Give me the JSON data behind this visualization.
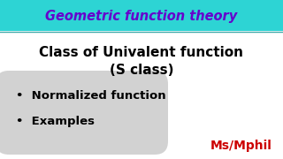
{
  "title_text": "Geometric function theory",
  "title_bg_color": "#2DD4D4",
  "title_text_color": "#6600CC",
  "title_fontsize": 10.5,
  "heading_line1": "Class of Univalent function",
  "heading_line2": "(S class)",
  "heading_fontsize": 11,
  "heading_color": "#000000",
  "bullet_items": [
    "Normalized function",
    "Examples"
  ],
  "bullet_fontsize": 9.5,
  "bullet_color": "#000000",
  "bullet_box_color": "#BBBBBB",
  "watermark_text": "Ms/Mphil",
  "watermark_color": "#CC0000",
  "watermark_fontsize": 10,
  "bg_color": "#FFFFFF",
  "fig_width": 3.2,
  "fig_height": 1.8,
  "dpi": 100
}
